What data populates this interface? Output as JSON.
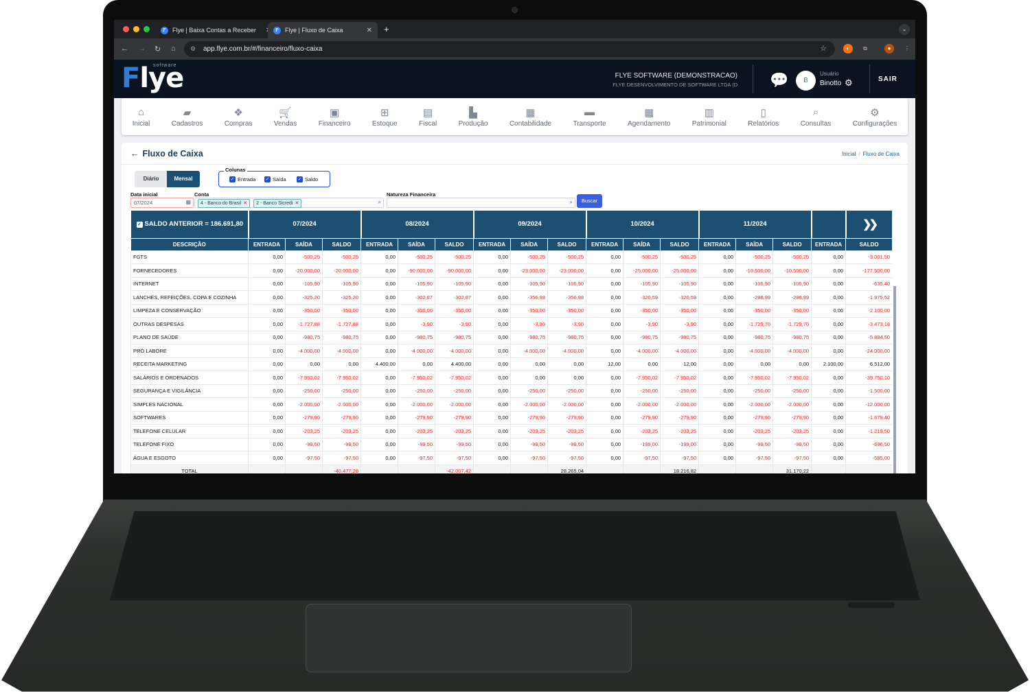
{
  "browser": {
    "tabs": [
      {
        "title": "Flye | Baixa Contas a Receber"
      },
      {
        "title": "Flye | Fluxo de Caixa"
      }
    ],
    "url": "app.flye.com.br/#/financeiro/fluxo-caixa"
  },
  "header": {
    "logo": "Flye",
    "logo_sub": "software",
    "company_name": "FLYE SOFTWARE (DEMONSTRACAO)",
    "company_legal": "FLYE DESENVOLVIMENTO DE SOFTWARE LTDA (D",
    "avatar_initial": "B",
    "user_label": "Usuário",
    "user_name": "Binotto",
    "logout": "SAIR"
  },
  "menu": [
    {
      "label": "Inicial",
      "icon": "home-icon"
    },
    {
      "label": "Cadastros",
      "icon": "folder-icon"
    },
    {
      "label": "Compras",
      "icon": "dropbox-icon"
    },
    {
      "label": "Vendas",
      "icon": "cart-icon"
    },
    {
      "label": "Financeiro",
      "icon": "money-icon"
    },
    {
      "label": "Estoque",
      "icon": "boxes-icon"
    },
    {
      "label": "Fiscal",
      "icon": "book-icon"
    },
    {
      "label": "Produção",
      "icon": "industry-icon"
    },
    {
      "label": "Contabilidade",
      "icon": "calculator-icon"
    },
    {
      "label": "Transporte",
      "icon": "truck-icon"
    },
    {
      "label": "Agendamento",
      "icon": "calendar-icon"
    },
    {
      "label": "Patrimonial",
      "icon": "building-icon"
    },
    {
      "label": "Relatórios",
      "icon": "file-icon"
    },
    {
      "label": "Consultas",
      "icon": "search-icon"
    },
    {
      "label": "Configurações",
      "icon": "gear-icon"
    }
  ],
  "page": {
    "title": "Fluxo de Caixa",
    "breadcrumb": [
      "Inicial",
      "Fluxo de Caixa"
    ]
  },
  "filters": {
    "view_diario": "Diário",
    "view_mensal": "Mensal",
    "colunas_label": "Colunas",
    "col_entrada": "Entrada",
    "col_saida": "Saída",
    "col_saldo": "Saldo",
    "data_inicial_label": "Data inicial",
    "data_inicial_value": "07/2024",
    "conta_label": "Conta",
    "conta_chips": [
      "4 - Banco do Brasil",
      "2 - Banco Sicredi"
    ],
    "natureza_label": "Natureza Financeira",
    "natureza_value": "",
    "buscar": "Buscar"
  },
  "grid": {
    "saldo_anterior": "SALDO ANTERIOR = 186.691,80",
    "months": [
      "07/2024",
      "08/2024",
      "09/2024",
      "10/2024",
      "11/2024"
    ],
    "col_descricao": "DESCRIÇÃO",
    "col_entrada": "ENTRADA",
    "col_saida": "SAÍDA",
    "col_saldo": "SALDO",
    "rows": [
      {
        "desc": "FGTS",
        "v": [
          "0,00",
          "-500,25",
          "-500,25",
          "0,00",
          "-500,25",
          "-500,25",
          "0,00",
          "-500,25",
          "-500,25",
          "0,00",
          "-500,25",
          "-500,25",
          "0,00",
          "-500,25",
          "-500,25",
          "0,00",
          "-3.001,50"
        ]
      },
      {
        "desc": "FORNECEDORES",
        "v": [
          "0,00",
          "-20.000,00",
          "-20.000,00",
          "0,00",
          "-90.000,00",
          "-90.000,00",
          "0,00",
          "-23.000,00",
          "-23.000,00",
          "0,00",
          "-25.000,00",
          "-25.000,00",
          "0,00",
          "-10.500,00",
          "-10.500,00",
          "0,00",
          "-177.500,00"
        ]
      },
      {
        "desc": "INTERNET",
        "v": [
          "0,00",
          "-105,90",
          "-105,90",
          "0,00",
          "-105,90",
          "-105,90",
          "0,00",
          "-105,90",
          "-105,90",
          "0,00",
          "-105,90",
          "-105,90",
          "0,00",
          "-105,90",
          "-105,90",
          "0,00",
          "-635,40"
        ]
      },
      {
        "desc": "LANCHES, REFEIÇÕES, COPA E COZINHA",
        "v": [
          "0,00",
          "-325,20",
          "-325,20",
          "0,00",
          "-302,87",
          "-302,87",
          "0,00",
          "-356,98",
          "-356,98",
          "0,00",
          "-320,59",
          "-320,59",
          "0,00",
          "-298,99",
          "-298,99",
          "0,00",
          "-1.975,52"
        ]
      },
      {
        "desc": "LIMPEZA E CONSERVAÇÃO",
        "v": [
          "0,00",
          "-350,00",
          "-350,00",
          "0,00",
          "-350,00",
          "-350,00",
          "0,00",
          "-350,00",
          "-350,00",
          "0,00",
          "-350,00",
          "-350,00",
          "0,00",
          "-350,00",
          "-350,00",
          "0,00",
          "-2.100,00"
        ]
      },
      {
        "desc": "OUTRAS DESPESAS",
        "v": [
          "0,00",
          "-1.727,88",
          "-1.727,88",
          "0,00",
          "-3,90",
          "-3,90",
          "0,00",
          "-3,90",
          "-3,90",
          "0,00",
          "-3,90",
          "-3,90",
          "0,00",
          "-1.729,70",
          "-1.729,70",
          "0,00",
          "-3.473,18"
        ]
      },
      {
        "desc": "PLANO DE SAÚDE",
        "v": [
          "0,00",
          "-980,75",
          "-980,75",
          "0,00",
          "-980,75",
          "-980,75",
          "0,00",
          "-980,75",
          "-980,75",
          "0,00",
          "-980,75",
          "-980,75",
          "0,00",
          "-980,75",
          "-980,75",
          "0,00",
          "-5.884,50"
        ]
      },
      {
        "desc": "PRÓ LABORE",
        "v": [
          "0,00",
          "-4.000,00",
          "-4.000,00",
          "0,00",
          "-4.000,00",
          "-4.000,00",
          "0,00",
          "-4.000,00",
          "-4.000,00",
          "0,00",
          "-4.000,00",
          "-4.000,00",
          "0,00",
          "-4.000,00",
          "-4.000,00",
          "0,00",
          "-24.000,00"
        ]
      },
      {
        "desc": "RECEITA MARKETING",
        "v": [
          "0,00",
          "0,00",
          "0,00",
          "4.400,00",
          "0,00",
          "4.400,00",
          "0,00",
          "0,00",
          "0,00",
          "12,00",
          "0,00",
          "12,00",
          "0,00",
          "0,00",
          "0,00",
          "2.100,00",
          "6.512,00"
        ]
      },
      {
        "desc": "SALÁRIOS E ORDENADOS",
        "v": [
          "0,00",
          "-7.950,02",
          "-7.950,02",
          "0,00",
          "-7.950,02",
          "-7.950,02",
          "0,00",
          "0,00",
          "0,00",
          "0,00",
          "-7.950,02",
          "-7.950,02",
          "0,00",
          "-7.950,02",
          "-7.950,02",
          "0,00",
          "-39.750,10"
        ]
      },
      {
        "desc": "SEGURANÇA E VIGILÂNCIA",
        "v": [
          "0,00",
          "-250,00",
          "-250,00",
          "0,00",
          "-250,00",
          "-250,00",
          "0,00",
          "-250,00",
          "-250,00",
          "0,00",
          "-250,00",
          "-250,00",
          "0,00",
          "-250,00",
          "-250,00",
          "0,00",
          "-1.500,00"
        ]
      },
      {
        "desc": "SIMPLES NACIONAL",
        "v": [
          "0,00",
          "-2.000,00",
          "-2.000,00",
          "0,00",
          "-2.000,00",
          "-2.000,00",
          "0,00",
          "-2.000,00",
          "-2.000,00",
          "0,00",
          "-2.000,00",
          "-2.000,00",
          "0,00",
          "-2.000,00",
          "-2.000,00",
          "0,00",
          "-12.000,00"
        ]
      },
      {
        "desc": "SOFTWARES",
        "v": [
          "0,00",
          "-279,90",
          "-279,90",
          "0,00",
          "-279,90",
          "-279,90",
          "0,00",
          "-279,90",
          "-279,90",
          "0,00",
          "-279,90",
          "-279,90",
          "0,00",
          "-279,90",
          "-279,90",
          "0,00",
          "-1.679,40"
        ]
      },
      {
        "desc": "TELEFONE CELULAR",
        "v": [
          "0,00",
          "-203,25",
          "-203,25",
          "0,00",
          "-203,25",
          "-203,25",
          "0,00",
          "-203,25",
          "-203,25",
          "0,00",
          "-203,25",
          "-203,25",
          "0,00",
          "-203,25",
          "-203,25",
          "0,00",
          "-1.219,50"
        ]
      },
      {
        "desc": "TELEFONE FIXO",
        "v": [
          "0,00",
          "-99,50",
          "-99,50",
          "0,00",
          "-99,50",
          "-99,50",
          "0,00",
          "-99,50",
          "-99,50",
          "0,00",
          "-199,00",
          "-199,00",
          "0,00",
          "-99,50",
          "-99,50",
          "0,00",
          "-696,50"
        ]
      },
      {
        "desc": "ÁGUA E ESGOTO",
        "v": [
          "0,00",
          "-97,50",
          "-97,50",
          "0,00",
          "-97,50",
          "-97,50",
          "0,00",
          "-97,50",
          "-97,50",
          "0,00",
          "-97,50",
          "-97,50",
          "0,00",
          "-97,50",
          "-97,50",
          "0,00",
          "-585,00"
        ]
      }
    ],
    "total_label": "TOTAL",
    "totals": [
      "",
      "",
      "-40.477,28",
      "",
      "",
      "-42.007,42",
      "",
      "",
      "28.265,04",
      "",
      "",
      "18.216,82",
      "",
      "",
      "31.170,22",
      "",
      ""
    ]
  }
}
